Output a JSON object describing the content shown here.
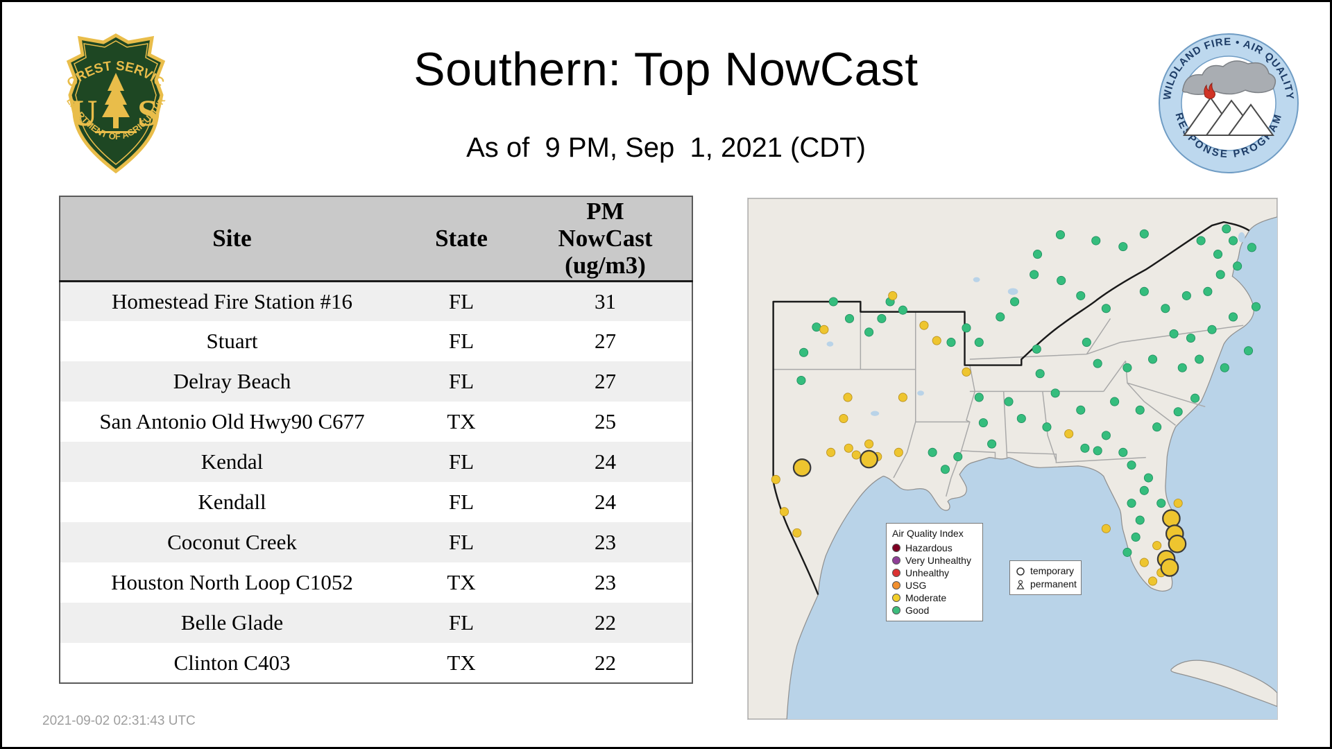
{
  "slide": {
    "title": "Southern: Top NowCast",
    "subtitle": "As of  9 PM, Sep  1, 2021 (CDT)",
    "timestamp": "2021-09-02 02:31:43 UTC"
  },
  "usfs_logo": {
    "arc_top": "FOREST SERVICE",
    "letter_left": "U",
    "letter_right": "S",
    "arc_bottom": "DEPARTMENT OF AGRICULTURE"
  },
  "program_logo": {
    "arc_top": "WILDLAND FIRE • AIR QUALITY",
    "arc_bottom": "RESPONSE PROGRAM"
  },
  "table_display": {
    "col_site": "Site",
    "col_state": "State",
    "col_pm": "PM\nNowCast\n(ug/m3)"
  },
  "chart_data": {
    "type": "table",
    "title": "Southern: Top NowCast",
    "as_of": "As of 9 PM, Sep 1, 2021 (CDT)",
    "columns": [
      "Site",
      "State",
      "PM NowCast (ug/m3)"
    ],
    "rows": [
      [
        "Homestead Fire Station #16",
        "FL",
        31
      ],
      [
        "Stuart",
        "FL",
        27
      ],
      [
        "Delray Beach",
        "FL",
        27
      ],
      [
        "San Antonio Old Hwy90 C677",
        "TX",
        25
      ],
      [
        "Kendal",
        "FL",
        24
      ],
      [
        "Kendall",
        "FL",
        24
      ],
      [
        "Coconut Creek",
        "FL",
        23
      ],
      [
        "Houston North Loop C1052",
        "TX",
        23
      ],
      [
        "Belle Glade",
        "FL",
        22
      ],
      [
        "Clinton C403",
        "TX",
        22
      ]
    ]
  },
  "map": {
    "colors": {
      "g": "#35bd7d",
      "m": "#eec52f",
      "water": "#b9d3e8",
      "land": "#edeae4"
    },
    "aqi_legend": {
      "title": "Air Quality Index",
      "items": [
        {
          "label": "Hazardous",
          "color": "#7e0023"
        },
        {
          "label": "Very Unhealthy",
          "color": "#8f3f97"
        },
        {
          "label": "Unhealthy",
          "color": "#dc3232"
        },
        {
          "label": "USG",
          "color": "#f2902e"
        },
        {
          "label": "Moderate",
          "color": "#f2cf2a"
        },
        {
          "label": "Good",
          "color": "#3dbd7d"
        }
      ]
    },
    "marker_legend": {
      "temporary": "temporary",
      "permanent": "permanent"
    },
    "dots": [
      [
        101,
        122,
        "g",
        "p"
      ],
      [
        81,
        152,
        "g",
        "p"
      ],
      [
        66,
        182,
        "g",
        "p"
      ],
      [
        120,
        142,
        "g",
        "p"
      ],
      [
        143,
        158,
        "g",
        "p"
      ],
      [
        158,
        142,
        "g",
        "p"
      ],
      [
        63,
        215,
        "g",
        "p"
      ],
      [
        168,
        122,
        "g",
        "p"
      ],
      [
        183,
        132,
        "g",
        "p"
      ],
      [
        240,
        170,
        "g",
        "p"
      ],
      [
        258,
        153,
        "g",
        "p"
      ],
      [
        273,
        170,
        "g",
        "p"
      ],
      [
        298,
        140,
        "g",
        "p"
      ],
      [
        315,
        122,
        "g",
        "p"
      ],
      [
        342,
        66,
        "g",
        "p"
      ],
      [
        369,
        43,
        "g",
        "p"
      ],
      [
        411,
        50,
        "g",
        "p"
      ],
      [
        443,
        57,
        "g",
        "p"
      ],
      [
        468,
        42,
        "g",
        "p"
      ],
      [
        535,
        50,
        "g",
        "p"
      ],
      [
        555,
        66,
        "g",
        "p"
      ],
      [
        573,
        50,
        "g",
        "p"
      ],
      [
        595,
        58,
        "g",
        "p"
      ],
      [
        565,
        36,
        "g",
        "p"
      ],
      [
        338,
        90,
        "g",
        "p"
      ],
      [
        370,
        97,
        "g",
        "p"
      ],
      [
        393,
        115,
        "g",
        "p"
      ],
      [
        423,
        130,
        "g",
        "p"
      ],
      [
        468,
        110,
        "g",
        "p"
      ],
      [
        493,
        130,
        "g",
        "p"
      ],
      [
        518,
        115,
        "g",
        "p"
      ],
      [
        543,
        110,
        "g",
        "p"
      ],
      [
        558,
        90,
        "g",
        "p"
      ],
      [
        578,
        80,
        "g",
        "p"
      ],
      [
        503,
        160,
        "g",
        "p"
      ],
      [
        523,
        165,
        "g",
        "p"
      ],
      [
        548,
        155,
        "g",
        "p"
      ],
      [
        573,
        140,
        "g",
        "p"
      ],
      [
        591,
        180,
        "g",
        "p"
      ],
      [
        600,
        128,
        "g",
        "p"
      ],
      [
        341,
        178,
        "g",
        "p"
      ],
      [
        400,
        170,
        "g",
        "p"
      ],
      [
        413,
        195,
        "g",
        "p"
      ],
      [
        448,
        200,
        "g",
        "p"
      ],
      [
        478,
        190,
        "g",
        "p"
      ],
      [
        513,
        200,
        "g",
        "p"
      ],
      [
        533,
        190,
        "g",
        "p"
      ],
      [
        563,
        200,
        "g",
        "p"
      ],
      [
        345,
        207,
        "g",
        "p"
      ],
      [
        363,
        230,
        "g",
        "p"
      ],
      [
        353,
        270,
        "g",
        "p"
      ],
      [
        393,
        250,
        "g",
        "p"
      ],
      [
        433,
        240,
        "g",
        "p"
      ],
      [
        463,
        250,
        "g",
        "p"
      ],
      [
        483,
        270,
        "g",
        "p"
      ],
      [
        423,
        280,
        "g",
        "p"
      ],
      [
        398,
        295,
        "g",
        "p"
      ],
      [
        273,
        235,
        "g",
        "p"
      ],
      [
        288,
        290,
        "g",
        "p"
      ],
      [
        323,
        260,
        "g",
        "p"
      ],
      [
        308,
        240,
        "g",
        "p"
      ],
      [
        278,
        265,
        "g",
        "p"
      ],
      [
        508,
        252,
        "g",
        "p"
      ],
      [
        528,
        236,
        "g",
        "p"
      ],
      [
        413,
        298,
        "g",
        "p"
      ],
      [
        443,
        300,
        "g",
        "p"
      ],
      [
        453,
        315,
        "g",
        "p"
      ],
      [
        473,
        330,
        "g",
        "p"
      ],
      [
        488,
        360,
        "g",
        "p"
      ],
      [
        463,
        380,
        "g",
        "p"
      ],
      [
        453,
        360,
        "g",
        "p"
      ],
      [
        468,
        345,
        "g",
        "p"
      ],
      [
        458,
        400,
        "g",
        "p"
      ],
      [
        448,
        418,
        "g",
        "p"
      ],
      [
        233,
        320,
        "g",
        "p"
      ],
      [
        248,
        305,
        "g",
        "p"
      ],
      [
        218,
        300,
        "g",
        "p"
      ],
      [
        90,
        155,
        "m",
        "p"
      ],
      [
        171,
        115,
        "m",
        "p"
      ],
      [
        208,
        150,
        "m",
        "p"
      ],
      [
        223,
        168,
        "m",
        "p"
      ],
      [
        118,
        235,
        "m",
        "p"
      ],
      [
        113,
        260,
        "m",
        "p"
      ],
      [
        183,
        235,
        "m",
        "p"
      ],
      [
        98,
        300,
        "m",
        "p"
      ],
      [
        178,
        300,
        "m",
        "p"
      ],
      [
        43,
        370,
        "m",
        "p"
      ],
      [
        58,
        395,
        "m",
        "p"
      ],
      [
        258,
        205,
        "m",
        "p"
      ],
      [
        379,
        278,
        "m",
        "p"
      ],
      [
        423,
        390,
        "m",
        "p"
      ],
      [
        483,
        410,
        "m",
        "p"
      ],
      [
        508,
        360,
        "m",
        "p"
      ],
      [
        503,
        385,
        "m",
        "p"
      ],
      [
        468,
        430,
        "m",
        "p"
      ],
      [
        488,
        442,
        "m",
        "p"
      ],
      [
        478,
        452,
        "m",
        "p"
      ],
      [
        119,
        295,
        "m",
        "p"
      ],
      [
        128,
        303,
        "m",
        "p"
      ],
      [
        143,
        290,
        "m",
        "p"
      ],
      [
        153,
        305,
        "m",
        "p"
      ],
      [
        33,
        332,
        "m",
        "p"
      ],
      [
        64,
        318,
        "m",
        "t"
      ],
      [
        143,
        308,
        "m",
        "t"
      ],
      [
        500,
        378,
        "m",
        "t"
      ],
      [
        504,
        396,
        "m",
        "t"
      ],
      [
        507,
        408,
        "m",
        "t"
      ],
      [
        494,
        426,
        "m",
        "t"
      ],
      [
        498,
        436,
        "m",
        "t"
      ]
    ]
  }
}
